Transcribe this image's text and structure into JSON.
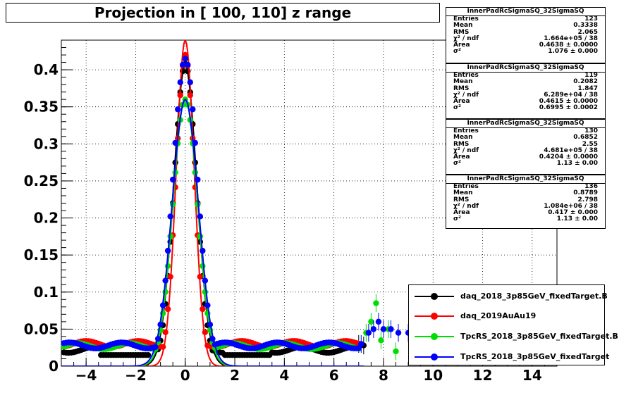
{
  "title": "Projection in [ 100, 110] z range",
  "colors": {
    "s0": "#000000",
    "s1": "#ff0000",
    "s2": "#00dd00",
    "s3": "#0000ff"
  },
  "stats": [
    {
      "name": "InnerPadRcSigmaSQ_32SigmaSQ",
      "entries": "123",
      "mean": "0.3338",
      "rms": "2.065",
      "chi2": "1.664e+05 / 38",
      "area": "0.4638 ± 0.0000",
      "sigma2": "1.076 ± 0.000"
    },
    {
      "name": "InnerPadRcSigmaSQ_32SigmaSQ",
      "entries": "119",
      "mean": "0.2082",
      "rms": "1.847",
      "chi2": "6.289e+04 / 38",
      "area": "0.4615 ± 0.0000",
      "sigma2": "0.6995 ± 0.0002"
    },
    {
      "name": "InnerPadRcSigmaSQ_32SigmaSQ",
      "entries": "130",
      "mean": "0.6852",
      "rms": "2.55",
      "chi2": "4.681e+05 / 38",
      "area": "0.4204 ± 0.0000",
      "sigma2": "1.13 ± 0.00"
    },
    {
      "name": "InnerPadRcSigmaSQ_32SigmaSQ",
      "entries": "136",
      "mean": "0.8789",
      "rms": "2.798",
      "chi2": "1.084e+06 / 38",
      "area": "0.417 ± 0.000",
      "sigma2": "1.13 ± 0.00"
    }
  ],
  "stat_labels": {
    "entries": "Entries",
    "mean": "Mean",
    "rms": "RMS",
    "chi2": "χ² / ndf",
    "area": "Area",
    "sigma2": "σ²"
  },
  "legend": [
    "daq_2018_3p85GeV_fixedTarget.B",
    "daq_2019AuAu19",
    "TpcRS_2018_3p85GeV_fixedTarget.B",
    "TpcRS_2018_3p85GeV_fixedTarget"
  ],
  "chart_data": {
    "type": "scatter",
    "xlim": [
      -5,
      15
    ],
    "ylim": [
      0,
      0.44
    ],
    "xticks": [
      -4,
      -2,
      0,
      2,
      4,
      6,
      8,
      10,
      12,
      14
    ],
    "yticks": [
      0,
      0.05,
      0.1,
      0.15,
      0.2,
      0.25,
      0.3,
      0.35,
      0.4
    ],
    "ytick_labels": [
      "0",
      "0.05",
      "0.1",
      "0.15",
      "0.2",
      "0.25",
      "0.3",
      "0.35",
      "0.4"
    ],
    "grid": true,
    "series": [
      {
        "name": "daq_2018_3p85GeV_fixedTarget.B",
        "peak": 0.408,
        "sigma": 0.45,
        "base": 0.022,
        "fit_peak": 0.405,
        "fit_sigma": 0.47,
        "tail": [
          [
            7.0,
            0.03
          ],
          [
            7.2,
            0.028
          ]
        ]
      },
      {
        "name": "daq_2019AuAu19",
        "peak": 0.42,
        "sigma": 0.38,
        "base": 0.03,
        "fit_peak": 0.44,
        "fit_sigma": 0.36,
        "tail": []
      },
      {
        "name": "TpcRS_2018_3p85GeV_fixedTarget.B",
        "peak": 0.36,
        "sigma": 0.5,
        "base": 0.027,
        "fit_peak": 0.36,
        "fit_sigma": 0.5,
        "tail": [
          [
            7.3,
            0.045
          ],
          [
            7.5,
            0.06
          ],
          [
            7.7,
            0.085
          ],
          [
            7.9,
            0.035
          ],
          [
            8.2,
            0.05
          ],
          [
            8.5,
            0.02
          ]
        ]
      },
      {
        "name": "TpcRS_2018_3p85GeV_fixedTarget",
        "peak": 0.415,
        "sigma": 0.5,
        "base": 0.028,
        "fit_peak": 0.36,
        "fit_sigma": 0.53,
        "tail": [
          [
            7.1,
            0.03
          ],
          [
            7.4,
            0.045
          ],
          [
            7.6,
            0.05
          ],
          [
            7.8,
            0.06
          ],
          [
            8.0,
            0.05
          ],
          [
            8.3,
            0.05
          ],
          [
            8.6,
            0.045
          ],
          [
            9.0,
            0.045
          ],
          [
            9.4,
            0.05
          ]
        ]
      }
    ]
  }
}
